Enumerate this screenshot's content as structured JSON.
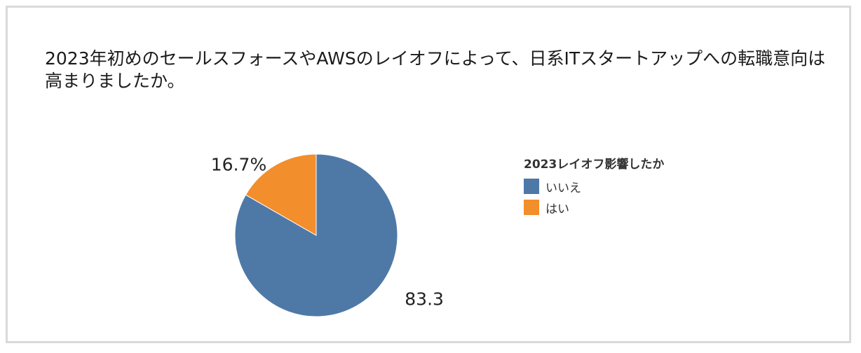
{
  "title": "2023年初めのセールスフォースやAWSのレイオフによって、日系ITスタートアップへの転職意向は高まりましたか。",
  "legend": {
    "title": "2023レイオフ影響したか"
  },
  "chart_data": {
    "type": "pie",
    "title": "2023年初めのセールスフォースやAWSのレイオフによって、日系ITスタートアップへの転職意向は高まりましたか。",
    "legend_title": "2023レイオフ影響したか",
    "legend_position": "right",
    "start_angle_deg": 0,
    "direction": "clockwise",
    "slices": [
      {
        "label": "いいえ",
        "value": 83.3,
        "value_label": "83.3%",
        "color": "#4e79a7"
      },
      {
        "label": "はい",
        "value": 16.7,
        "value_label": "16.7%",
        "color": "#f28e2b"
      }
    ]
  }
}
